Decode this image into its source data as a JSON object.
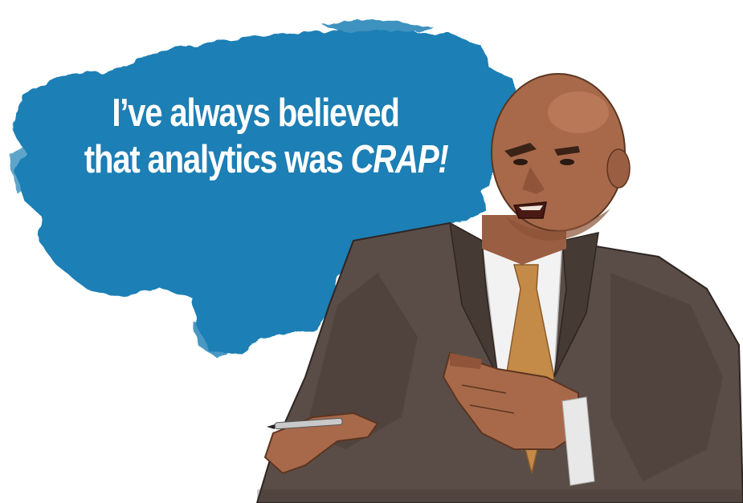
{
  "quote": {
    "line1": "I’ve always believed",
    "line2_prefix": "that analytics was ",
    "line2_emphasis": "CRAP!"
  },
  "colors": {
    "background": "#ffffff",
    "splash_blue": "#1a7fb5",
    "quote_text": "#ffffff",
    "suit": "#5a4d47",
    "shirt": "#f2f2f2",
    "tie": "#c48a47",
    "skin": "#a8694b"
  },
  "icons": {
    "speech_splash": "paint-brush-splash",
    "person": "man-in-suit-illustration",
    "pen": "pen"
  }
}
